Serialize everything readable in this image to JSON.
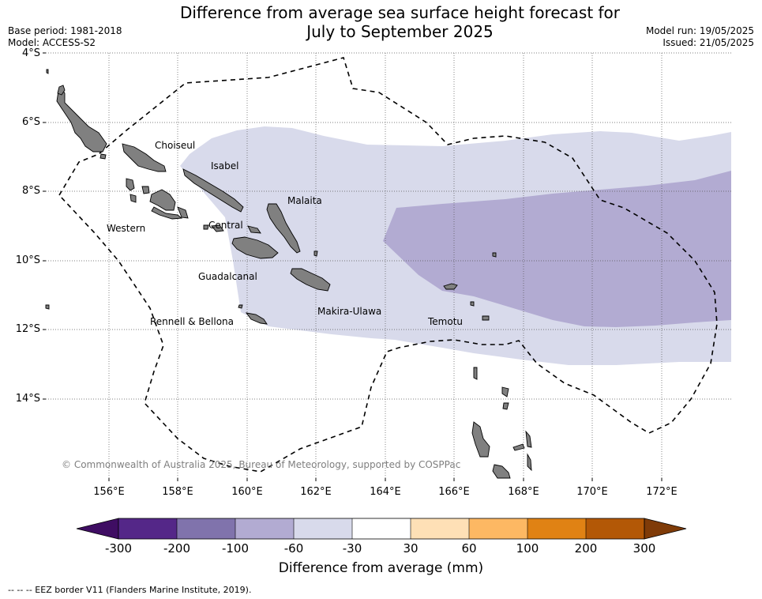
{
  "title_line1": "Difference from average sea surface height forecast for",
  "title_line2": "July to September 2025",
  "base_period": "Base period: 1981-2018",
  "model": "Model: ACCESS-S2",
  "model_run": "Model run: 19/05/2025",
  "issued": "Issued: 21/05/2025",
  "lat_labels": [
    "4°S",
    "6°S",
    "8°S",
    "10°S",
    "12°S",
    "14°S"
  ],
  "lon_labels": [
    "156°E",
    "158°E",
    "160°E",
    "162°E",
    "164°E",
    "166°E",
    "168°E",
    "170°E",
    "172°E"
  ],
  "provinces": [
    "Choiseul",
    "Isabel",
    "Malaita",
    "Western",
    "Central",
    "Guadalcanal",
    "Makira-Ulawa",
    "Rennell & Bellona",
    "Temotu"
  ],
  "copyright": "© Commonwealth of Australia 2025, Bureau of Meteorology, supported by COSPPac",
  "colorbar": {
    "label": "Difference from average (mm)",
    "ticks": [
      "-300",
      "-200",
      "-100",
      "-60",
      "-30",
      "30",
      "60",
      "100",
      "200",
      "300"
    ],
    "colors": [
      "#3f0d63",
      "#542788",
      "#8073ac",
      "#b2abd2",
      "#d8daeb",
      "#ffffff",
      "#fee0b6",
      "#fdb863",
      "#e08214",
      "#b35806",
      "#7f3b08"
    ]
  },
  "eez_legend": "--  --  -- EEZ border V11 (Flanders Marine Institute, 2019).",
  "forecast_shading": {
    "light_band": "-60 to -30 mm",
    "darker_band": "-100 to -60 mm"
  }
}
